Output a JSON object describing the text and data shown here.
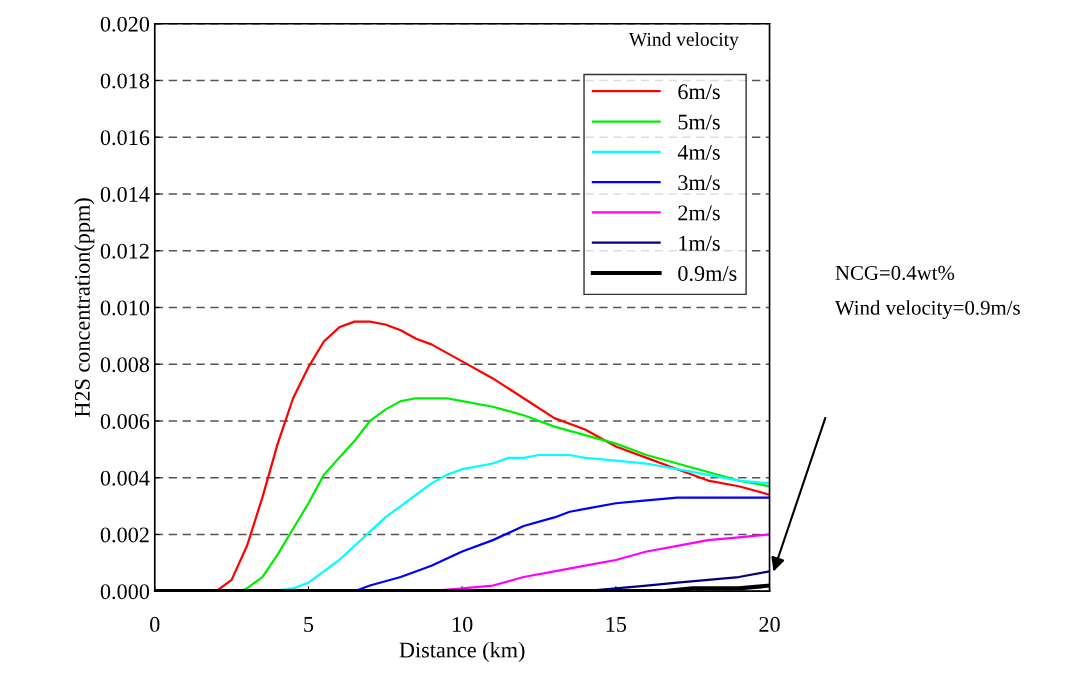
{
  "chart_data": {
    "type": "line",
    "xlabel": "Distance (km)",
    "ylabel": "H2S concentration(ppm)",
    "legend_title": "Wind velocity",
    "xlim": [
      0,
      20
    ],
    "xticks": [
      0,
      5,
      10,
      15,
      20
    ],
    "ylim": [
      0,
      0.02
    ],
    "yticks": [
      {
        "value": 0,
        "label": "0.000"
      },
      {
        "value": 0.002,
        "label": "0.002"
      },
      {
        "value": 0.004,
        "label": "0.004"
      },
      {
        "value": 0.006,
        "label": "0.006"
      },
      {
        "value": 0.008,
        "label": "0.008"
      },
      {
        "value": 0.01,
        "label": "0.010"
      },
      {
        "value": 0.012,
        "label": "0.012"
      },
      {
        "value": 0.014,
        "label": "0.014"
      },
      {
        "value": 0.016,
        "label": "0.016"
      },
      {
        "value": 0.018,
        "label": "0.018"
      },
      {
        "value": 0.02,
        "label": "0.020"
      }
    ],
    "grid": "y",
    "legend": "top right",
    "marker": "none",
    "line_style": "solid",
    "series": [
      {
        "name": "6m/s",
        "color": "#ff0000",
        "x": [
          2,
          2.5,
          3,
          3.5,
          4,
          4.5,
          5,
          5.5,
          6,
          6.5,
          7,
          7.5,
          8,
          8.5,
          9,
          10,
          11,
          12,
          13,
          14,
          15,
          16,
          17,
          18,
          19,
          20
        ],
        "values": [
          0,
          0.0004,
          0.0016,
          0.0033,
          0.0052,
          0.0068,
          0.0079,
          0.0088,
          0.0093,
          0.0095,
          0.0095,
          0.0094,
          0.0092,
          0.0089,
          0.0087,
          0.0081,
          0.0075,
          0.0068,
          0.0061,
          0.0057,
          0.0051,
          0.0047,
          0.0043,
          0.0039,
          0.0037,
          0.0034
        ]
      },
      {
        "name": "5m/s",
        "color": "#00ee00",
        "x": [
          2.8,
          3,
          3.5,
          4,
          4.5,
          5,
          5.5,
          6,
          6.5,
          7,
          7.5,
          8,
          8.5,
          9,
          9.5,
          10,
          11,
          12,
          13,
          14,
          15,
          16,
          17,
          18,
          19,
          20
        ],
        "values": [
          0,
          0.0001,
          0.0005,
          0.0013,
          0.0022,
          0.0031,
          0.0041,
          0.0047,
          0.0053,
          0.006,
          0.0064,
          0.0067,
          0.0068,
          0.0068,
          0.0068,
          0.0067,
          0.0065,
          0.0062,
          0.0058,
          0.0055,
          0.0052,
          0.0048,
          0.0045,
          0.0042,
          0.0039,
          0.0037
        ]
      },
      {
        "name": "4m/s",
        "color": "#00ffff",
        "x": [
          3.8,
          4.5,
          5,
          5.5,
          6,
          6.5,
          7,
          7.5,
          8,
          8.5,
          9,
          9.5,
          10,
          11,
          11.5,
          12,
          12.5,
          13.5,
          14,
          15,
          16,
          17,
          18,
          19,
          20
        ],
        "values": [
          0,
          0.0001,
          0.0003,
          0.0007,
          0.0011,
          0.0016,
          0.0021,
          0.0026,
          0.003,
          0.0034,
          0.0038,
          0.0041,
          0.0043,
          0.0045,
          0.0047,
          0.0047,
          0.0048,
          0.0048,
          0.0047,
          0.0046,
          0.0045,
          0.0043,
          0.0041,
          0.0039,
          0.0038
        ]
      },
      {
        "name": "3m/s",
        "color": "#0000ff",
        "x": [
          6.5,
          7,
          8,
          9,
          10,
          11,
          12,
          13,
          13.5,
          14,
          15,
          16,
          17,
          18,
          20
        ],
        "values": [
          0,
          0.0002,
          0.0005,
          0.0009,
          0.0014,
          0.0018,
          0.0023,
          0.0026,
          0.0028,
          0.0029,
          0.0031,
          0.0032,
          0.0033,
          0.0033,
          0.0033
        ]
      },
      {
        "name": "2m/s",
        "color": "#ff00ff",
        "x": [
          9,
          10,
          11,
          12,
          13,
          14,
          15,
          16,
          17,
          18,
          19,
          20
        ],
        "values": [
          0,
          0.0001,
          0.0002,
          0.0005,
          0.0007,
          0.0009,
          0.0011,
          0.0014,
          0.0016,
          0.0018,
          0.0019,
          0.002
        ]
      },
      {
        "name": "1m/s",
        "color": "#000080",
        "x": [
          14,
          15,
          16,
          17,
          18,
          19,
          20
        ],
        "values": [
          0,
          0.0001,
          0.0002,
          0.0003,
          0.0004,
          0.0005,
          0.0007
        ]
      },
      {
        "name": "0.9m/s",
        "color": "#000000",
        "x": [
          0,
          16.5,
          17.5,
          18,
          19,
          20
        ],
        "values": [
          0,
          0,
          0.0001,
          0.0001,
          0.0001,
          0.0002
        ]
      }
    ],
    "annotations": [
      "NCG=0.4wt%",
      "Wind velocity=0.9m/s"
    ]
  }
}
